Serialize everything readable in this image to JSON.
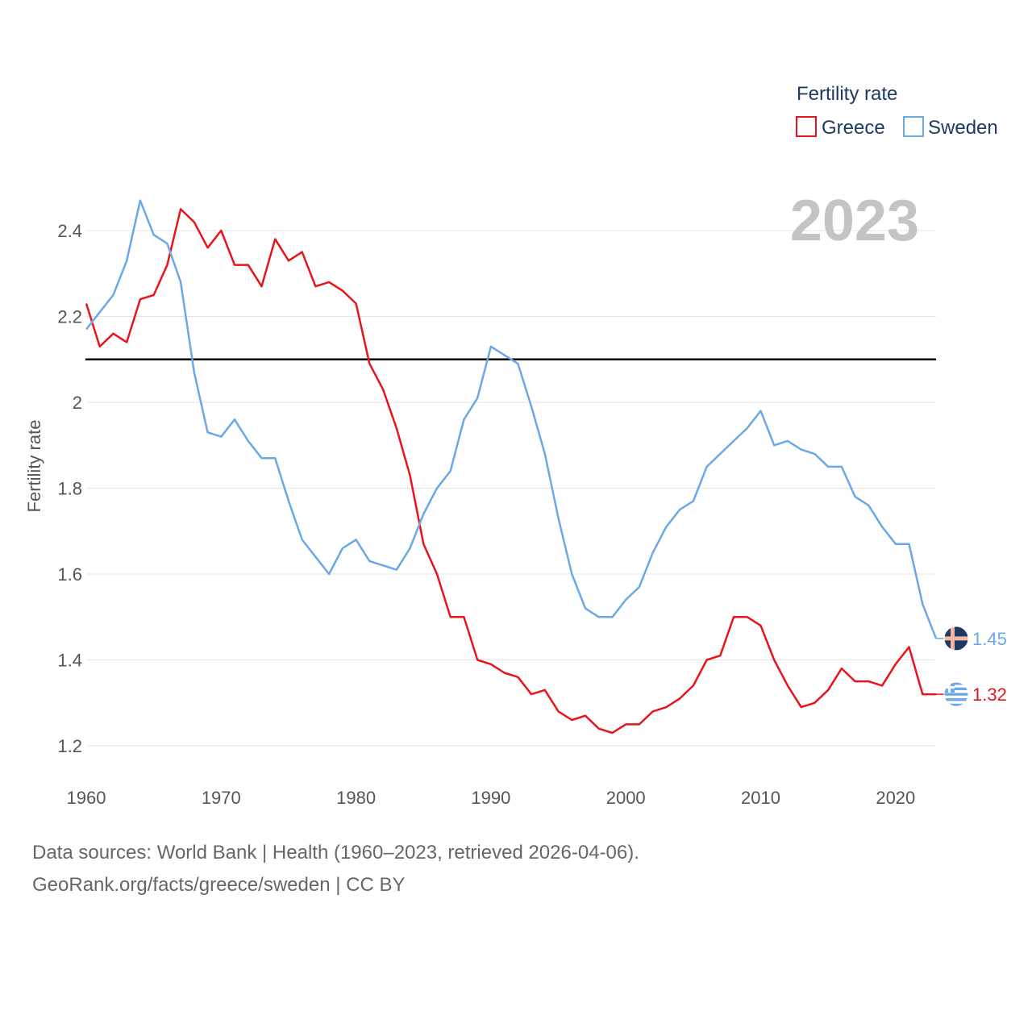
{
  "chart_data": {
    "type": "line",
    "year_label": "2023",
    "ylabel": "Fertility rate",
    "xlabel": "",
    "xlim": [
      1960,
      2023
    ],
    "ylim": [
      1.2,
      2.46
    ],
    "x_ticks": [
      1960,
      1970,
      1980,
      1990,
      2000,
      2010,
      2020
    ],
    "y_ticks": [
      1.2,
      1.4,
      1.6,
      1.8,
      2,
      2.2,
      2.4
    ],
    "y_tick_labels": [
      "1.2",
      "1.4",
      "1.6",
      "1.8",
      "2",
      "2.2",
      "2.4"
    ],
    "x_tick_labels": [
      "1960",
      "1970",
      "1980",
      "1990",
      "2000",
      "2010",
      "2020"
    ],
    "reference_line": {
      "value": 2.1,
      "color": "#000000"
    },
    "legend": {
      "title": "Fertility rate",
      "position": "top-right",
      "items": [
        "Greece",
        "Sweden"
      ]
    },
    "series": [
      {
        "name": "Greece",
        "color": "#e8141b",
        "end_label": "1.32",
        "flag_icon": "greece-flag-icon",
        "x": [
          1960,
          1961,
          1962,
          1963,
          1964,
          1965,
          1966,
          1967,
          1968,
          1969,
          1970,
          1971,
          1972,
          1973,
          1974,
          1975,
          1976,
          1977,
          1978,
          1979,
          1980,
          1981,
          1982,
          1983,
          1984,
          1985,
          1986,
          1987,
          1988,
          1989,
          1990,
          1991,
          1992,
          1993,
          1994,
          1995,
          1996,
          1997,
          1998,
          1999,
          2000,
          2001,
          2002,
          2003,
          2004,
          2005,
          2006,
          2007,
          2008,
          2009,
          2010,
          2011,
          2012,
          2013,
          2014,
          2015,
          2016,
          2017,
          2018,
          2019,
          2020,
          2021,
          2022,
          2023
        ],
        "values": [
          2.23,
          2.13,
          2.16,
          2.14,
          2.24,
          2.25,
          2.32,
          2.45,
          2.42,
          2.36,
          2.4,
          2.32,
          2.32,
          2.27,
          2.38,
          2.33,
          2.35,
          2.27,
          2.28,
          2.26,
          2.23,
          2.09,
          2.03,
          1.94,
          1.83,
          1.67,
          1.6,
          1.5,
          1.5,
          1.4,
          1.39,
          1.37,
          1.36,
          1.32,
          1.33,
          1.28,
          1.26,
          1.27,
          1.24,
          1.23,
          1.25,
          1.25,
          1.28,
          1.29,
          1.31,
          1.34,
          1.4,
          1.41,
          1.5,
          1.5,
          1.48,
          1.4,
          1.34,
          1.29,
          1.3,
          1.33,
          1.38,
          1.35,
          1.35,
          1.34,
          1.39,
          1.43,
          1.32,
          1.32
        ]
      },
      {
        "name": "Sweden",
        "color": "#6aa8e6",
        "end_label": "1.45",
        "flag_icon": "sweden-flag-icon",
        "x": [
          1960,
          1961,
          1962,
          1963,
          1964,
          1965,
          1966,
          1967,
          1968,
          1969,
          1970,
          1971,
          1972,
          1973,
          1974,
          1975,
          1976,
          1977,
          1978,
          1979,
          1980,
          1981,
          1982,
          1983,
          1984,
          1985,
          1986,
          1987,
          1988,
          1989,
          1990,
          1991,
          1992,
          1993,
          1994,
          1995,
          1996,
          1997,
          1998,
          1999,
          2000,
          2001,
          2002,
          2003,
          2004,
          2005,
          2006,
          2007,
          2008,
          2009,
          2010,
          2011,
          2012,
          2013,
          2014,
          2015,
          2016,
          2017,
          2018,
          2019,
          2020,
          2021,
          2022,
          2023
        ],
        "values": [
          2.17,
          2.21,
          2.25,
          2.33,
          2.47,
          2.39,
          2.37,
          2.28,
          2.07,
          1.93,
          1.92,
          1.96,
          1.91,
          1.87,
          1.87,
          1.77,
          1.68,
          1.64,
          1.6,
          1.66,
          1.68,
          1.63,
          1.62,
          1.61,
          1.66,
          1.74,
          1.8,
          1.84,
          1.96,
          2.01,
          2.13,
          2.11,
          2.09,
          1.99,
          1.88,
          1.73,
          1.6,
          1.52,
          1.5,
          1.5,
          1.54,
          1.57,
          1.65,
          1.71,
          1.75,
          1.77,
          1.85,
          1.88,
          1.91,
          1.94,
          1.98,
          1.9,
          1.91,
          1.89,
          1.88,
          1.85,
          1.85,
          1.78,
          1.76,
          1.71,
          1.67,
          1.67,
          1.53,
          1.45
        ]
      }
    ]
  },
  "footer": {
    "sources": "Data sources: World Bank | Health (1960–2023, retrieved 2026-04-06).",
    "attribution": "GeoRank.org/facts/greece/sweden | CC BY"
  }
}
